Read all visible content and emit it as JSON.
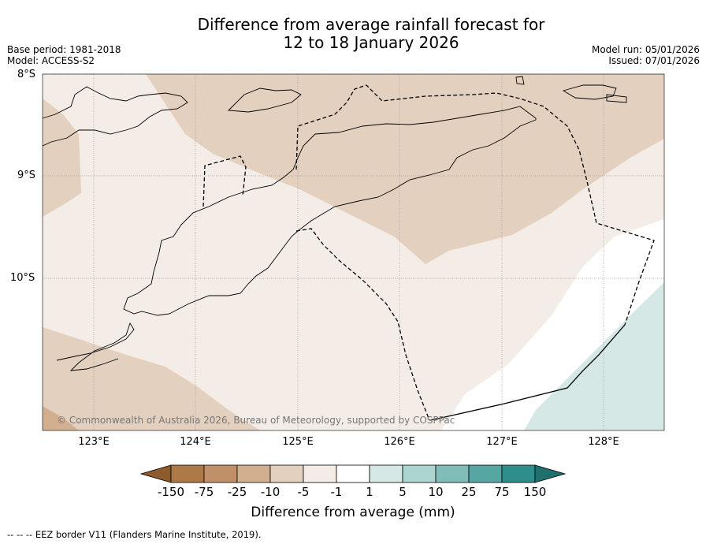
{
  "title_line1": "Difference from average rainfall forecast for",
  "title_line2": "12 to 18 January 2026",
  "base_period": "Base period: 1981-2018",
  "model": "Model: ACCESS-S2",
  "model_run": "Model run: 05/01/2026",
  "issued": "Issued: 07/01/2026",
  "latitudes": [
    "8°S",
    "9°S",
    "10°S"
  ],
  "longitudes": [
    "123°E",
    "124°E",
    "125°E",
    "126°E",
    "127°E",
    "128°E"
  ],
  "copyright": "© Commonwealth of Australia 2026, Bureau of Meteorology, supported by COSPPac",
  "colorbar": {
    "title": "Difference from average (mm)",
    "labels": [
      "-150",
      "-75",
      "-25",
      "-10",
      "-5",
      "-1",
      "1",
      "5",
      "10",
      "25",
      "75",
      "150"
    ],
    "colors": [
      "#8c5a2b",
      "#ad7a47",
      "#c09168",
      "#d2b08f",
      "#e4d0bf",
      "#f4ede7",
      "#ffffff",
      "#d5e8e6",
      "#acd5d2",
      "#80bdb9",
      "#56a6a3",
      "#2e8e8b",
      "#1e6f6d"
    ]
  },
  "footer": "--  --  -- EEZ border V11 (Flanders Marine Institute, 2019)."
}
